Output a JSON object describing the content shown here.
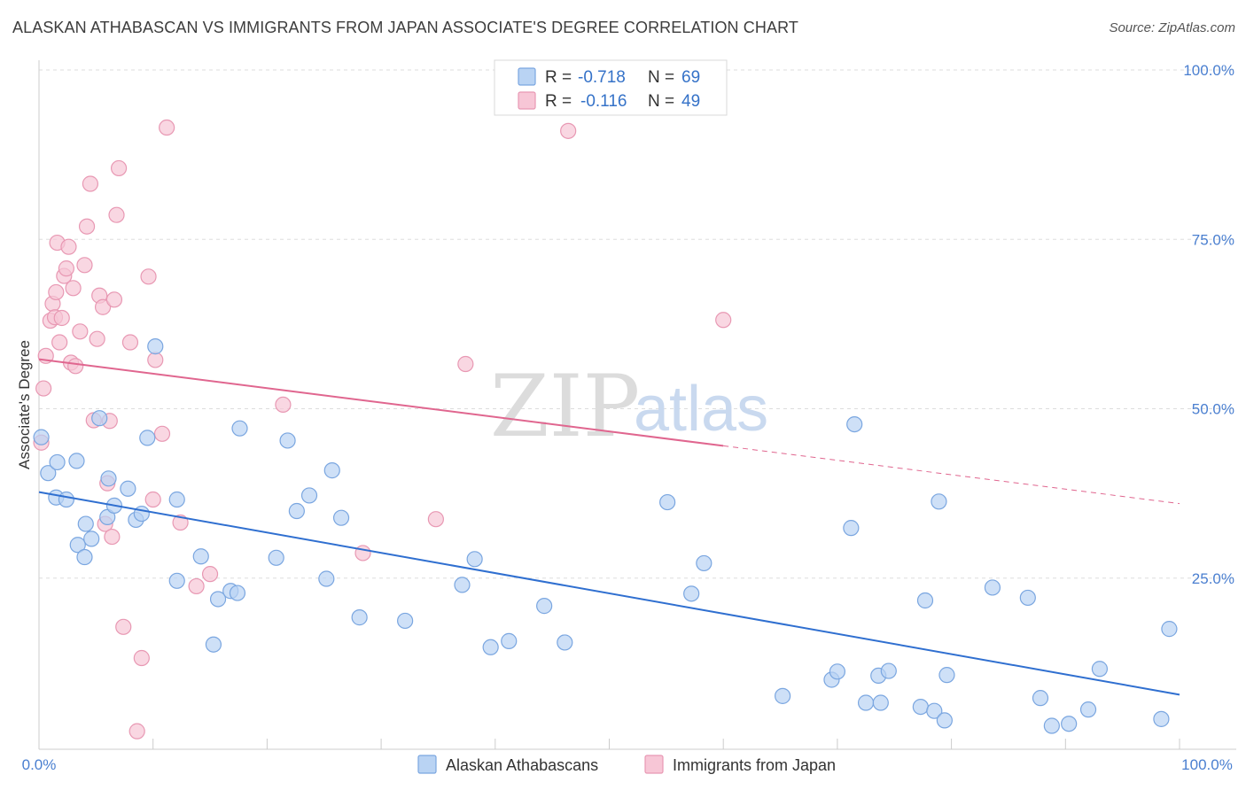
{
  "title": "ALASKAN ATHABASCAN VS IMMIGRANTS FROM JAPAN ASSOCIATE'S DEGREE CORRELATION CHART",
  "source": "Source: ZipAtlas.com",
  "watermark": {
    "zip": "ZIP",
    "atlas": "atlas"
  },
  "colors": {
    "blue_fill": "#b9d3f3",
    "blue_stroke": "#7aa6e0",
    "blue_line": "#2f6fd0",
    "pink_fill": "#f7c6d6",
    "pink_stroke": "#e898b3",
    "pink_line": "#e0668f",
    "tick": "#4a7fd0",
    "grid": "#dddddd"
  },
  "legend": {
    "rows": [
      {
        "r_label": "R =",
        "r_value": "-0.718",
        "n_label": "N =",
        "n_value": "69"
      },
      {
        "r_label": "R =",
        "r_value": "-0.116",
        "n_label": "N =",
        "n_value": "49"
      }
    ]
  },
  "chart_data": {
    "type": "scatter",
    "title": "ALASKAN ATHABASCAN VS IMMIGRANTS FROM JAPAN ASSOCIATE'S DEGREE CORRELATION CHART",
    "xlabel": "",
    "ylabel": "Associate's Degree",
    "xlim": [
      0,
      100
    ],
    "ylim": [
      0,
      100
    ],
    "x_tick_labels": [
      "0.0%",
      "100.0%"
    ],
    "y_ticks": [
      25,
      50,
      75,
      100
    ],
    "y_tick_labels": [
      "25.0%",
      "50.0%",
      "75.0%",
      "100.0%"
    ],
    "grid": true,
    "legend_position": "top-center",
    "series": [
      {
        "name": "Alaskan Athabascans",
        "R": -0.718,
        "N": 69,
        "trend": {
          "x": [
            0,
            100
          ],
          "y": [
            37.7,
            7.8
          ],
          "dashed_from": null
        },
        "points": [
          [
            0.2,
            45.8
          ],
          [
            0.8,
            40.5
          ],
          [
            1.6,
            42.1
          ],
          [
            1.5,
            36.9
          ],
          [
            2.4,
            36.6
          ],
          [
            3.4,
            29.9
          ],
          [
            3.3,
            42.3
          ],
          [
            4.0,
            28.1
          ],
          [
            4.1,
            33.0
          ],
          [
            4.6,
            30.8
          ],
          [
            5.3,
            48.6
          ],
          [
            6.0,
            34.0
          ],
          [
            6.1,
            39.7
          ],
          [
            6.6,
            35.7
          ],
          [
            7.8,
            38.2
          ],
          [
            8.5,
            33.6
          ],
          [
            9.0,
            34.5
          ],
          [
            9.5,
            45.7
          ],
          [
            10.2,
            59.2
          ],
          [
            12.1,
            36.6
          ],
          [
            12.1,
            24.6
          ],
          [
            14.2,
            28.2
          ],
          [
            15.3,
            15.2
          ],
          [
            15.7,
            21.9
          ],
          [
            16.8,
            23.1
          ],
          [
            17.4,
            22.8
          ],
          [
            17.6,
            47.1
          ],
          [
            20.8,
            28.0
          ],
          [
            21.8,
            45.3
          ],
          [
            22.6,
            34.9
          ],
          [
            23.7,
            37.2
          ],
          [
            25.2,
            24.9
          ],
          [
            25.7,
            40.9
          ],
          [
            26.5,
            33.9
          ],
          [
            28.1,
            19.2
          ],
          [
            32.1,
            18.7
          ],
          [
            37.1,
            24.0
          ],
          [
            38.2,
            27.8
          ],
          [
            39.6,
            14.8
          ],
          [
            41.2,
            15.7
          ],
          [
            44.3,
            20.9
          ],
          [
            46.1,
            15.5
          ],
          [
            55.1,
            36.2
          ],
          [
            57.2,
            22.7
          ],
          [
            58.3,
            27.2
          ],
          [
            65.2,
            7.6
          ],
          [
            69.5,
            10.0
          ],
          [
            70.0,
            11.2
          ],
          [
            71.2,
            32.4
          ],
          [
            71.5,
            47.7
          ],
          [
            72.5,
            6.6
          ],
          [
            73.6,
            10.6
          ],
          [
            73.8,
            6.6
          ],
          [
            74.5,
            11.3
          ],
          [
            77.3,
            6.0
          ],
          [
            77.7,
            21.7
          ],
          [
            78.5,
            5.4
          ],
          [
            78.9,
            36.3
          ],
          [
            79.4,
            4.0
          ],
          [
            79.6,
            10.7
          ],
          [
            83.6,
            23.6
          ],
          [
            86.7,
            22.1
          ],
          [
            87.8,
            7.3
          ],
          [
            88.8,
            3.2
          ],
          [
            90.3,
            3.5
          ],
          [
            92.0,
            5.6
          ],
          [
            93.0,
            11.6
          ],
          [
            98.4,
            4.2
          ],
          [
            99.1,
            17.5
          ]
        ]
      },
      {
        "name": "Immigrants from Japan",
        "R": -0.116,
        "N": 49,
        "trend": {
          "x": [
            0,
            100
          ],
          "y": [
            57.3,
            36.0
          ],
          "dashed_from": 60
        },
        "points": [
          [
            0.2,
            45.0
          ],
          [
            0.4,
            53.0
          ],
          [
            0.6,
            57.8
          ],
          [
            1.0,
            63.0
          ],
          [
            1.2,
            65.5
          ],
          [
            1.4,
            63.5
          ],
          [
            1.5,
            67.2
          ],
          [
            1.6,
            74.5
          ],
          [
            1.8,
            59.8
          ],
          [
            2.0,
            63.4
          ],
          [
            2.2,
            69.6
          ],
          [
            2.4,
            70.7
          ],
          [
            2.6,
            73.9
          ],
          [
            2.8,
            56.8
          ],
          [
            3.0,
            67.8
          ],
          [
            3.2,
            56.3
          ],
          [
            3.6,
            61.4
          ],
          [
            4.0,
            71.2
          ],
          [
            4.2,
            76.9
          ],
          [
            4.5,
            83.2
          ],
          [
            4.8,
            48.3
          ],
          [
            5.1,
            60.3
          ],
          [
            5.3,
            66.7
          ],
          [
            5.6,
            65.0
          ],
          [
            5.8,
            33.0
          ],
          [
            6.0,
            39.0
          ],
          [
            6.2,
            48.2
          ],
          [
            6.4,
            31.1
          ],
          [
            6.6,
            66.1
          ],
          [
            6.8,
            78.6
          ],
          [
            7.0,
            85.5
          ],
          [
            7.4,
            17.8
          ],
          [
            8.0,
            59.8
          ],
          [
            8.6,
            2.4
          ],
          [
            9.0,
            13.2
          ],
          [
            9.6,
            69.5
          ],
          [
            10.0,
            36.6
          ],
          [
            10.2,
            57.2
          ],
          [
            10.8,
            46.3
          ],
          [
            11.2,
            91.5
          ],
          [
            12.4,
            33.2
          ],
          [
            13.8,
            23.8
          ],
          [
            15.0,
            25.6
          ],
          [
            21.4,
            50.6
          ],
          [
            28.4,
            28.7
          ],
          [
            34.8,
            33.7
          ],
          [
            37.4,
            56.6
          ],
          [
            46.4,
            91.0
          ],
          [
            60.0,
            63.1
          ]
        ]
      }
    ]
  }
}
